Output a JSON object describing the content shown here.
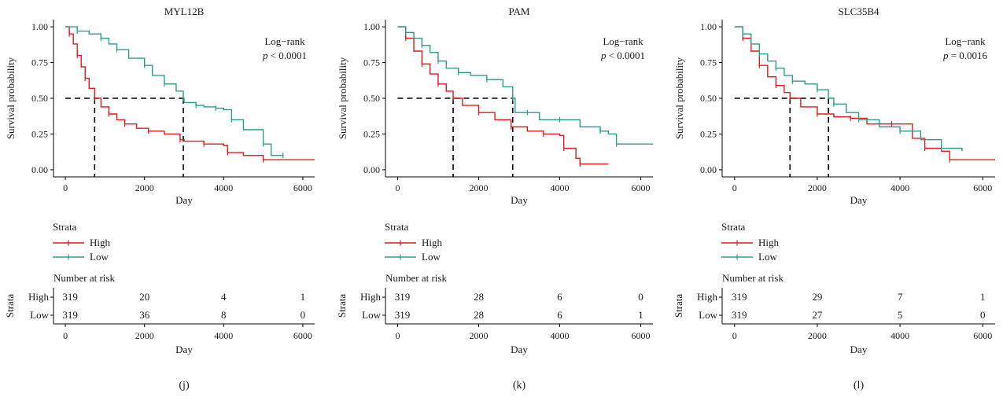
{
  "chart_data": [
    {
      "type": "line",
      "subtype": "kaplan-meier",
      "title": "MYL12B",
      "panel_label": "(j)",
      "xlabel": "Day",
      "ylabel": "Survival probability",
      "xlim": [
        -300,
        6300
      ],
      "ylim": [
        -0.05,
        1.05
      ],
      "xticks": [
        0,
        2000,
        4000,
        6000
      ],
      "yticks": [
        "0.00",
        "0.25",
        "0.50",
        "0.75",
        "1.00"
      ],
      "annotation": {
        "line1": "Log−rank",
        "p_symbol": "p",
        "p_rest": " < 0.0001"
      },
      "median_survival": {
        "High": 740,
        "Low": 2980
      },
      "legend": {
        "title": "Strata",
        "entries": [
          "High",
          "Low"
        ]
      },
      "series": [
        {
          "name": "High",
          "color": "#e41a1c",
          "x": [
            0,
            100,
            200,
            300,
            400,
            500,
            600,
            740,
            900,
            1100,
            1300,
            1500,
            1800,
            2100,
            2500,
            2900,
            3000,
            3500,
            4000,
            4100,
            4500,
            5000,
            6300
          ],
          "y": [
            1.0,
            0.95,
            0.88,
            0.8,
            0.72,
            0.64,
            0.57,
            0.5,
            0.44,
            0.39,
            0.35,
            0.32,
            0.29,
            0.27,
            0.25,
            0.21,
            0.2,
            0.18,
            0.17,
            0.12,
            0.1,
            0.07,
            0.07
          ]
        },
        {
          "name": "Low",
          "color": "#2a9d8f",
          "x": [
            0,
            300,
            600,
            900,
            1100,
            1300,
            1600,
            2000,
            2200,
            2500,
            2800,
            2980,
            3000,
            3300,
            3500,
            3800,
            4000,
            4200,
            4500,
            5000,
            5200,
            5500
          ],
          "y": [
            1.0,
            0.97,
            0.95,
            0.92,
            0.88,
            0.84,
            0.78,
            0.73,
            0.66,
            0.6,
            0.55,
            0.5,
            0.47,
            0.45,
            0.44,
            0.43,
            0.42,
            0.35,
            0.28,
            0.18,
            0.1,
            0.1
          ]
        }
      ],
      "risk_table": {
        "title": "Number at risk",
        "axis_label": "Strata",
        "rows": [
          {
            "label": "High",
            "values": [
              "319",
              "20",
              "4",
              "1"
            ]
          },
          {
            "label": "Low",
            "values": [
              "319",
              "36",
              "8",
              "0"
            ]
          }
        ],
        "times": [
          0,
          2000,
          4000,
          6000
        ]
      }
    },
    {
      "type": "line",
      "subtype": "kaplan-meier",
      "title": "PAM",
      "panel_label": "(k)",
      "xlabel": "Day",
      "ylabel": "Survival probability",
      "xlim": [
        -300,
        6300
      ],
      "ylim": [
        -0.05,
        1.05
      ],
      "xticks": [
        0,
        2000,
        4000,
        6000
      ],
      "yticks": [
        "0.00",
        "0.25",
        "0.50",
        "0.75",
        "1.00"
      ],
      "annotation": {
        "line1": "Log−rank",
        "p_symbol": "p",
        "p_rest": " < 0.0001"
      },
      "median_survival": {
        "High": 1370,
        "Low": 2840
      },
      "legend": {
        "title": "Strata",
        "entries": [
          "High",
          "Low"
        ]
      },
      "series": [
        {
          "name": "High",
          "color": "#e41a1c",
          "x": [
            0,
            200,
            400,
            600,
            800,
            1000,
            1200,
            1370,
            1600,
            2000,
            2400,
            2800,
            3200,
            3600,
            4000,
            4100,
            4400,
            4500,
            5200
          ],
          "y": [
            1.0,
            0.92,
            0.83,
            0.74,
            0.67,
            0.6,
            0.55,
            0.5,
            0.45,
            0.4,
            0.35,
            0.3,
            0.27,
            0.25,
            0.24,
            0.15,
            0.08,
            0.04,
            0.04
          ]
        },
        {
          "name": "Low",
          "color": "#2a9d8f",
          "x": [
            0,
            200,
            400,
            600,
            800,
            1000,
            1200,
            1500,
            1800,
            2200,
            2600,
            2840,
            2900,
            3200,
            3500,
            4000,
            4500,
            5000,
            5200,
            5400,
            6300
          ],
          "y": [
            1.0,
            0.96,
            0.92,
            0.87,
            0.82,
            0.76,
            0.71,
            0.68,
            0.66,
            0.63,
            0.58,
            0.5,
            0.4,
            0.4,
            0.35,
            0.35,
            0.3,
            0.27,
            0.25,
            0.18,
            0.18
          ]
        }
      ],
      "risk_table": {
        "title": "Number at risk",
        "axis_label": "Strata",
        "rows": [
          {
            "label": "High",
            "values": [
              "319",
              "28",
              "6",
              "0"
            ]
          },
          {
            "label": "Low",
            "values": [
              "319",
              "28",
              "6",
              "1"
            ]
          }
        ],
        "times": [
          0,
          2000,
          4000,
          6000
        ]
      }
    },
    {
      "type": "line",
      "subtype": "kaplan-meier",
      "title": "SLC35B4",
      "panel_label": "(l)",
      "xlabel": "Day",
      "ylabel": "Survival probability",
      "xlim": [
        -300,
        6300
      ],
      "ylim": [
        -0.05,
        1.05
      ],
      "xticks": [
        0,
        2000,
        4000,
        6000
      ],
      "yticks": [
        "0.00",
        "0.25",
        "0.50",
        "0.75",
        "1.00"
      ],
      "annotation": {
        "line1": "Log−rank",
        "p_symbol": "p",
        "p_rest": " = 0.0016"
      },
      "median_survival": {
        "High": 1340,
        "Low": 2270
      },
      "legend": {
        "title": "Strata",
        "entries": [
          "High",
          "Low"
        ]
      },
      "series": [
        {
          "name": "High",
          "color": "#e41a1c",
          "x": [
            0,
            200,
            400,
            600,
            800,
            1000,
            1200,
            1340,
            1600,
            2000,
            2400,
            2800,
            3200,
            3800,
            4300,
            4600,
            5000,
            5200,
            6300
          ],
          "y": [
            1.0,
            0.92,
            0.83,
            0.73,
            0.65,
            0.59,
            0.54,
            0.5,
            0.44,
            0.39,
            0.37,
            0.36,
            0.32,
            0.32,
            0.22,
            0.15,
            0.13,
            0.07,
            0.07
          ]
        },
        {
          "name": "Low",
          "color": "#2a9d8f",
          "x": [
            0,
            200,
            400,
            600,
            800,
            1000,
            1200,
            1400,
            1700,
            2000,
            2270,
            2400,
            2700,
            3000,
            3500,
            4000,
            4500,
            5000,
            5500
          ],
          "y": [
            1.0,
            0.95,
            0.88,
            0.81,
            0.76,
            0.71,
            0.66,
            0.62,
            0.6,
            0.56,
            0.5,
            0.46,
            0.4,
            0.35,
            0.3,
            0.27,
            0.21,
            0.15,
            0.13
          ]
        }
      ],
      "risk_table": {
        "title": "Number at risk",
        "axis_label": "Strata",
        "rows": [
          {
            "label": "High",
            "values": [
              "319",
              "29",
              "7",
              "1"
            ]
          },
          {
            "label": "Low",
            "values": [
              "319",
              "27",
              "5",
              "0"
            ]
          }
        ],
        "times": [
          0,
          2000,
          4000,
          6000
        ]
      }
    }
  ]
}
